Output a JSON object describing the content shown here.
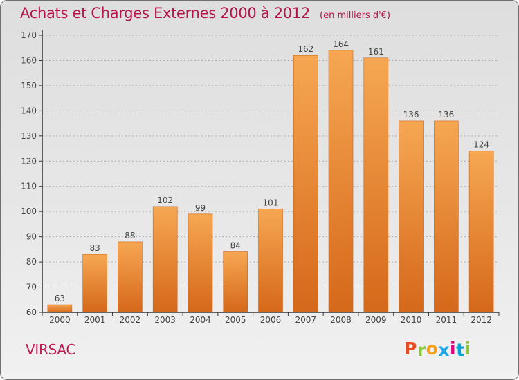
{
  "title": "Achats et Charges Externes 2000 à 2012",
  "title_unit": "(en milliers d'€)",
  "place": "VIRSAC",
  "logo": {
    "letters": [
      "P",
      "r",
      "o",
      "x",
      "i",
      "t",
      "i"
    ],
    "colors": [
      "#e94b24",
      "#8cc63f",
      "#f7a21b",
      "#1ea5e6",
      "#e6007e",
      "#00a3df",
      "#8cc63f"
    ]
  },
  "colors": {
    "title": "#b7144a",
    "bar_light": "#f6a752",
    "bar_dark": "#d5681a",
    "axis": "#333333",
    "grid": "#aaaaaa"
  },
  "chart_data": {
    "type": "bar",
    "categories": [
      "2000",
      "2001",
      "2002",
      "2003",
      "2004",
      "2005",
      "2006",
      "2007",
      "2008",
      "2009",
      "2010",
      "2011",
      "2012"
    ],
    "values": [
      63,
      83,
      88,
      102,
      99,
      84,
      101,
      162,
      164,
      161,
      136,
      136,
      124
    ],
    "ylim": [
      60,
      170
    ],
    "yticks": [
      60,
      70,
      80,
      90,
      100,
      110,
      120,
      130,
      140,
      150,
      160,
      170
    ],
    "grid": "horizontal dashed",
    "title": "Achats et Charges Externes 2000 à 2012",
    "subtitle": "(en milliers d'€)",
    "xlabel": "",
    "ylabel": ""
  }
}
